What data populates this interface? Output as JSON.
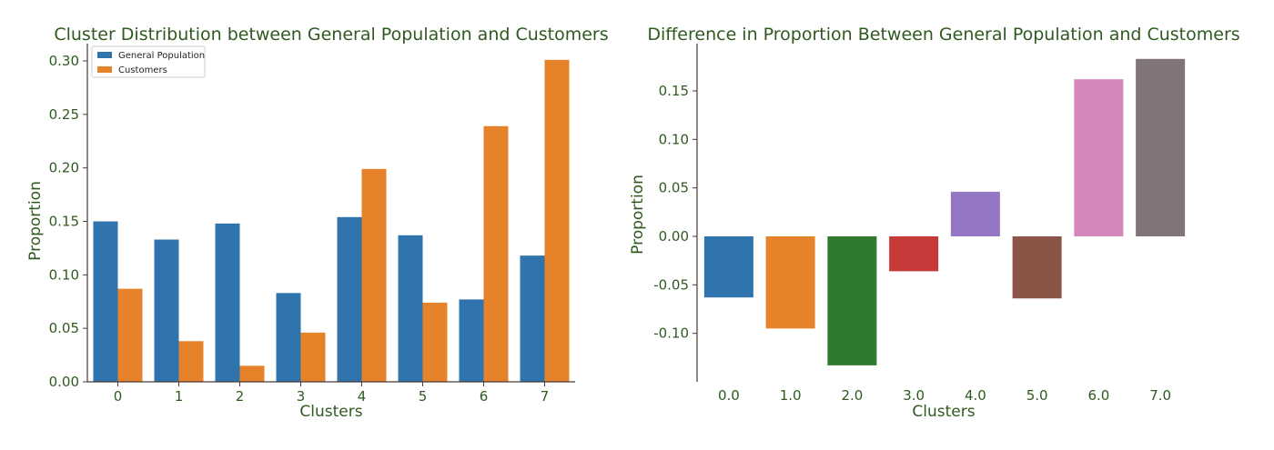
{
  "chart_data": [
    {
      "type": "bar",
      "title": "Cluster Distribution between General Population and Customers",
      "xlabel": "Clusters",
      "ylabel": "Proportion",
      "categories": [
        "0",
        "1",
        "2",
        "3",
        "4",
        "5",
        "6",
        "7"
      ],
      "series": [
        {
          "name": "General Population",
          "color": "#2f74ac",
          "values": [
            0.15,
            0.133,
            0.148,
            0.083,
            0.154,
            0.137,
            0.077,
            0.118
          ]
        },
        {
          "name": "Customers",
          "color": "#e6822a",
          "values": [
            0.087,
            0.038,
            0.015,
            0.046,
            0.199,
            0.074,
            0.239,
            0.301
          ]
        }
      ],
      "ylim": [
        0,
        0.3
      ],
      "yticks": [
        "0.00",
        "0.05",
        "0.10",
        "0.15",
        "0.20",
        "0.25",
        "0.30"
      ],
      "legend": "top-left",
      "grid": false
    },
    {
      "type": "bar",
      "title": "Difference in Proportion Between General Population and Customers",
      "xlabel": "Clusters",
      "ylabel": "Proportion",
      "categories": [
        "0.0",
        "1.0",
        "2.0",
        "3.0",
        "4.0",
        "5.0",
        "6.0",
        "7.0"
      ],
      "values": [
        -0.063,
        -0.095,
        -0.133,
        -0.036,
        0.046,
        -0.064,
        0.162,
        0.183
      ],
      "colors": [
        "#2f74ac",
        "#e6822a",
        "#2f7a2f",
        "#c73a3a",
        "#9477c4",
        "#8a5446",
        "#d485b9",
        "#80747a"
      ],
      "ylim": [
        -0.135,
        0.19
      ],
      "yticks": [
        "-0.10",
        "-0.05",
        "0.00",
        "0.05",
        "0.10",
        "0.15"
      ],
      "grid": false
    }
  ]
}
